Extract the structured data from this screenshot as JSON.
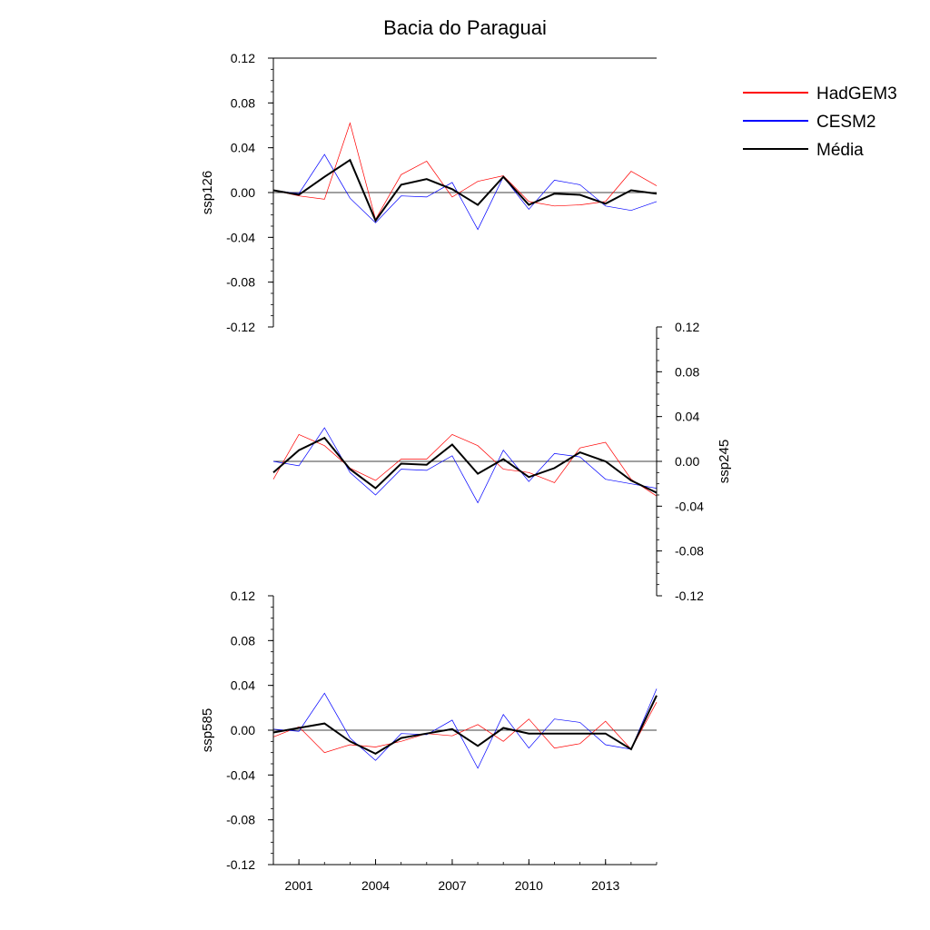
{
  "chart_data": {
    "type": "line",
    "title": "Bacia do Paraguai",
    "x": [
      2000,
      2001,
      2002,
      2003,
      2004,
      2005,
      2006,
      2007,
      2008,
      2009,
      2010,
      2011,
      2012,
      2013,
      2014,
      2015
    ],
    "xticks": [
      2001,
      2004,
      2007,
      2010,
      2013
    ],
    "xlim": [
      2000,
      2015
    ],
    "ylim": [
      -0.12,
      0.12
    ],
    "yticks": [
      "0.12",
      "0.08",
      "0.04",
      "0.00",
      "-0.04",
      "-0.08",
      "-0.12"
    ],
    "legend": {
      "position": "top-right",
      "entries": [
        {
          "name": "HadGEM3",
          "color": "#ff0000"
        },
        {
          "name": "CESM2",
          "color": "#0000ff"
        },
        {
          "name": "Média",
          "color": "#000000"
        }
      ]
    },
    "panels": [
      {
        "ylabel": "ssp126",
        "axis_side": "left",
        "series": [
          {
            "name": "HadGEM3",
            "values": [
              0.002,
              -0.003,
              -0.006,
              0.062,
              -0.024,
              0.016,
              0.028,
              -0.004,
              0.01,
              0.015,
              -0.008,
              -0.012,
              -0.011,
              -0.008,
              0.019,
              0.006
            ]
          },
          {
            "name": "CESM2",
            "values": [
              0.002,
              -0.001,
              0.034,
              -0.005,
              -0.027,
              -0.003,
              -0.004,
              0.009,
              -0.033,
              0.014,
              -0.015,
              0.011,
              0.007,
              -0.012,
              -0.016,
              -0.008
            ]
          },
          {
            "name": "Média",
            "values": [
              0.002,
              -0.002,
              0.014,
              0.029,
              -0.025,
              0.007,
              0.012,
              0.003,
              -0.011,
              0.014,
              -0.011,
              -0.001,
              -0.002,
              -0.01,
              0.002,
              -0.001
            ]
          }
        ]
      },
      {
        "ylabel": "ssp245",
        "axis_side": "right",
        "series": [
          {
            "name": "HadGEM3",
            "values": [
              -0.016,
              0.024,
              0.014,
              -0.006,
              -0.017,
              0.002,
              0.002,
              0.024,
              0.014,
              -0.007,
              -0.01,
              -0.019,
              0.012,
              0.017,
              -0.016,
              -0.031
            ]
          },
          {
            "name": "CESM2",
            "values": [
              0.0,
              -0.004,
              0.03,
              -0.01,
              -0.03,
              -0.007,
              -0.008,
              0.005,
              -0.037,
              0.01,
              -0.018,
              0.007,
              0.004,
              -0.016,
              -0.02,
              -0.024
            ]
          },
          {
            "name": "Média",
            "values": [
              -0.01,
              0.01,
              0.021,
              -0.007,
              -0.024,
              -0.002,
              -0.003,
              0.015,
              -0.011,
              0.002,
              -0.014,
              -0.006,
              0.008,
              0.0,
              -0.017,
              -0.028
            ]
          }
        ]
      },
      {
        "ylabel": "ssp585",
        "axis_side": "left",
        "series": [
          {
            "name": "HadGEM3",
            "values": [
              -0.006,
              0.003,
              -0.02,
              -0.013,
              -0.015,
              -0.01,
              -0.003,
              -0.005,
              0.005,
              -0.01,
              0.01,
              -0.016,
              -0.012,
              0.008,
              -0.017,
              0.025
            ]
          },
          {
            "name": "CESM2",
            "values": [
              0.001,
              -0.001,
              0.033,
              -0.007,
              -0.027,
              -0.003,
              -0.004,
              0.009,
              -0.034,
              0.014,
              -0.016,
              0.01,
              0.007,
              -0.013,
              -0.017,
              0.037
            ]
          },
          {
            "name": "Média",
            "values": [
              -0.002,
              0.002,
              0.006,
              -0.01,
              -0.021,
              -0.007,
              -0.003,
              0.001,
              -0.014,
              0.002,
              -0.003,
              -0.003,
              -0.003,
              -0.003,
              -0.017,
              0.031
            ]
          }
        ]
      }
    ]
  }
}
